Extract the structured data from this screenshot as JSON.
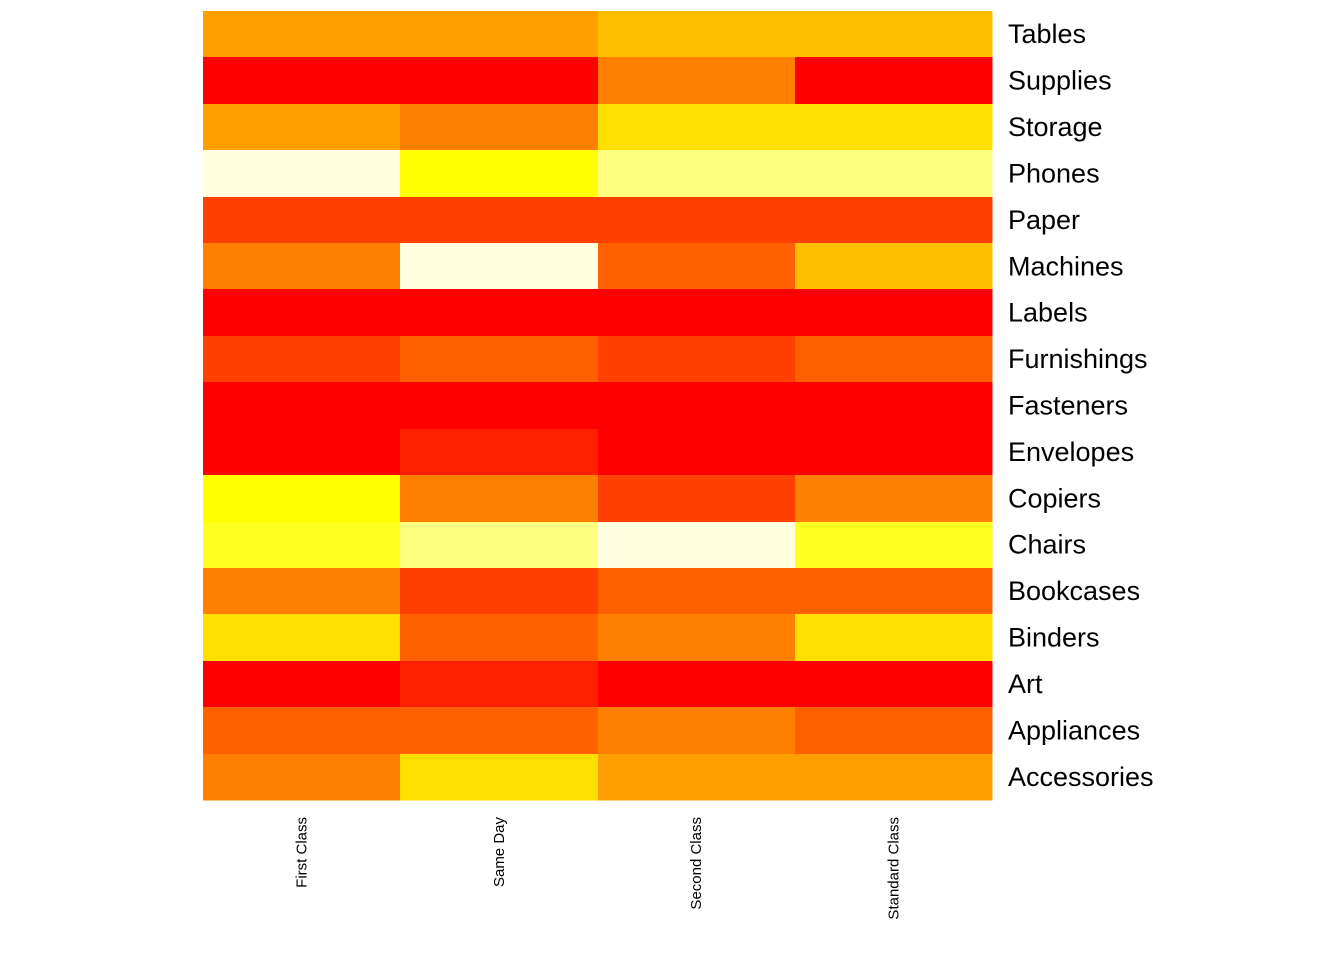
{
  "chart_data": {
    "type": "heatmap",
    "title": "",
    "xlabel": "",
    "ylabel": "",
    "x": [
      "First Class",
      "Same Day",
      "Second Class",
      "Standard Class"
    ],
    "y": [
      "Tables",
      "Supplies",
      "Storage",
      "Phones",
      "Paper",
      "Machines",
      "Labels",
      "Furnishings",
      "Fasteners",
      "Envelopes",
      "Copiers",
      "Chairs",
      "Bookcases",
      "Binders",
      "Art",
      "Appliances",
      "Accessories"
    ],
    "color_scale": "heat (red - orange - yellow - light yellow)",
    "color_levels": [
      "#FF0000",
      "#FF2000",
      "#FF4000",
      "#FF6000",
      "#FF8000",
      "#FFA000",
      "#FFBF00",
      "#FFDF00",
      "#FFFF00",
      "#FFFF20",
      "#FFFF80",
      "#FFFFDF"
    ],
    "values": [
      [
        5,
        5,
        6,
        6
      ],
      [
        0,
        0,
        4,
        0
      ],
      [
        5,
        4,
        7,
        7
      ],
      [
        11,
        8,
        10,
        10
      ],
      [
        2,
        2,
        2,
        2
      ],
      [
        4,
        11,
        3,
        6
      ],
      [
        0,
        0,
        0,
        0
      ],
      [
        2,
        3,
        2,
        3
      ],
      [
        0,
        0,
        0,
        0
      ],
      [
        0,
        1,
        0,
        0
      ],
      [
        8,
        4,
        2,
        4
      ],
      [
        9,
        10,
        11,
        9
      ],
      [
        4,
        2,
        3,
        3
      ],
      [
        7,
        3,
        4,
        7
      ],
      [
        0,
        1,
        0,
        0
      ],
      [
        3,
        3,
        4,
        3
      ],
      [
        4,
        7,
        5,
        5
      ]
    ],
    "value_note": "values are color-level indices 0 (red, lowest) to 11 (light yellow, highest)",
    "legend": "none",
    "grid": false
  }
}
